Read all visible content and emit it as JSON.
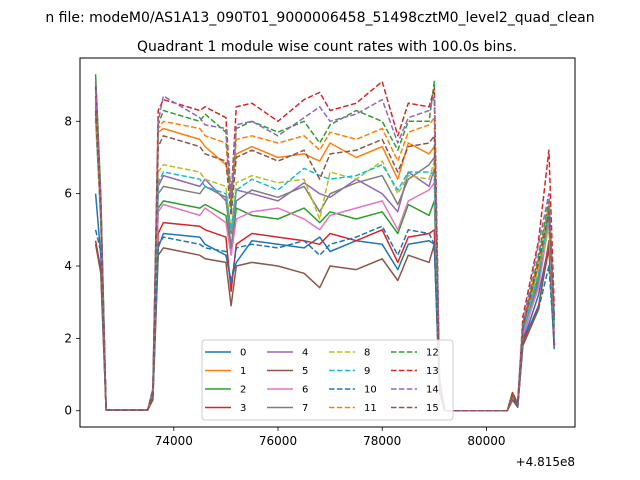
{
  "figure": {
    "suptitle": "n file: modeM0/AS1A13_090T01_9000006458_51498cztM0_level2_quad_clean",
    "title": "Quadrant 1 module wise count rates with 100.0s bins.",
    "x_offset_label": "+4.815e8"
  },
  "chart_data": {
    "type": "line",
    "title": "Quadrant 1 module wise count rates with 100.0s bins.",
    "xlabel": "",
    "ylabel": "",
    "x_offset": 481500000,
    "xlim": [
      72200,
      81700
    ],
    "ylim": [
      -0.45,
      9.75
    ],
    "xticks": [
      74000,
      76000,
      78000,
      80000
    ],
    "yticks": [
      0,
      2,
      4,
      6,
      8
    ],
    "xtick_labels": [
      "74000",
      "76000",
      "78000",
      "80000"
    ],
    "ytick_labels": [
      "0",
      "2",
      "4",
      "6",
      "8"
    ],
    "grid": false,
    "legend_position": "lower center",
    "legend_columns": 4,
    "x": [
      72500,
      72600,
      72700,
      73500,
      73600,
      73700,
      73800,
      74500,
      74600,
      75000,
      75100,
      75200,
      75500,
      76000,
      76500,
      76800,
      77000,
      77500,
      78000,
      78300,
      78500,
      78900,
      79000,
      79100,
      79200,
      80400,
      80500,
      80600,
      80700,
      81000,
      81200,
      81300
    ],
    "series": [
      {
        "name": "0",
        "color": "#1f77b4",
        "dash": "solid",
        "values": [
          6.0,
          4.3,
          0.02,
          0.02,
          0.4,
          4.5,
          4.9,
          4.8,
          4.6,
          4.3,
          3.6,
          4.1,
          4.7,
          4.6,
          4.5,
          4.8,
          4.4,
          4.7,
          4.6,
          3.9,
          4.6,
          4.7,
          4.6,
          0.6,
          0.0,
          0.0,
          0.5,
          0.1,
          1.9,
          3.2,
          4.6,
          1.7
        ]
      },
      {
        "name": "1",
        "color": "#ff7f0e",
        "dash": "solid",
        "values": [
          8.5,
          5.5,
          0.02,
          0.02,
          0.5,
          7.7,
          7.8,
          7.5,
          7.3,
          6.8,
          6.1,
          7.1,
          7.3,
          7.0,
          7.1,
          6.9,
          7.4,
          7.0,
          7.3,
          6.4,
          7.4,
          7.1,
          7.3,
          0.8,
          0.0,
          0.0,
          0.3,
          0.2,
          2.3,
          4.0,
          5.3,
          2.6
        ]
      },
      {
        "name": "2",
        "color": "#2ca02c",
        "dash": "solid",
        "values": [
          9.3,
          6.0,
          0.02,
          0.02,
          0.6,
          5.6,
          5.8,
          5.6,
          5.7,
          5.4,
          4.4,
          5.6,
          5.4,
          5.3,
          5.6,
          5.2,
          5.5,
          5.3,
          5.5,
          4.9,
          5.7,
          5.4,
          5.8,
          0.9,
          0.0,
          0.0,
          0.5,
          0.2,
          2.4,
          3.7,
          5.6,
          2.3
        ]
      },
      {
        "name": "3",
        "color": "#d62728",
        "dash": "solid",
        "values": [
          4.7,
          3.9,
          0.02,
          0.02,
          0.4,
          4.9,
          5.2,
          5.1,
          5.0,
          4.8,
          3.3,
          4.6,
          4.9,
          4.8,
          4.7,
          4.6,
          4.9,
          4.7,
          5.0,
          4.1,
          4.8,
          4.9,
          5.0,
          0.6,
          0.0,
          0.0,
          0.3,
          0.1,
          1.9,
          2.9,
          4.5,
          1.8
        ]
      },
      {
        "name": "4",
        "color": "#9467bd",
        "dash": "solid",
        "values": [
          8.7,
          5.6,
          0.02,
          0.02,
          0.5,
          6.2,
          6.5,
          6.2,
          6.4,
          5.8,
          4.9,
          6.1,
          6.0,
          5.8,
          6.3,
          6.0,
          5.9,
          6.4,
          6.0,
          5.5,
          6.6,
          6.2,
          6.7,
          0.8,
          0.0,
          0.0,
          0.4,
          0.2,
          2.0,
          3.5,
          5.3,
          2.1
        ]
      },
      {
        "name": "5",
        "color": "#8c564b",
        "dash": "solid",
        "values": [
          4.6,
          3.8,
          0.02,
          0.02,
          0.3,
          4.3,
          4.5,
          4.3,
          4.2,
          4.1,
          2.9,
          4.0,
          4.1,
          4.0,
          3.8,
          3.4,
          4.0,
          3.9,
          4.2,
          3.6,
          4.3,
          4.1,
          4.6,
          0.5,
          0.0,
          0.0,
          0.3,
          0.1,
          1.8,
          2.8,
          4.7,
          1.9
        ]
      },
      {
        "name": "6",
        "color": "#e377c2",
        "dash": "solid",
        "values": [
          8.2,
          5.2,
          0.02,
          0.02,
          0.5,
          5.5,
          5.7,
          5.4,
          5.6,
          5.2,
          4.3,
          5.3,
          5.5,
          5.6,
          5.3,
          5.0,
          5.4,
          5.6,
          5.8,
          5.0,
          5.8,
          6.1,
          6.3,
          0.7,
          0.0,
          0.0,
          0.4,
          0.2,
          2.1,
          3.4,
          5.2,
          2.2
        ]
      },
      {
        "name": "7",
        "color": "#7f7f7f",
        "dash": "solid",
        "values": [
          8.4,
          5.5,
          0.02,
          0.02,
          0.5,
          6.0,
          6.2,
          6.0,
          6.2,
          5.9,
          4.5,
          5.8,
          6.1,
          5.9,
          6.2,
          5.5,
          6.0,
          6.3,
          6.5,
          5.7,
          6.4,
          6.8,
          7.0,
          0.8,
          0.0,
          0.0,
          0.4,
          0.2,
          2.2,
          3.6,
          5.5,
          2.3
        ]
      },
      {
        "name": "8",
        "color": "#bcbd22",
        "dash": "dashed",
        "values": [
          8.0,
          5.3,
          0.02,
          0.02,
          0.5,
          6.6,
          6.8,
          6.6,
          6.4,
          6.2,
          5.0,
          6.3,
          6.5,
          6.3,
          6.4,
          5.3,
          6.6,
          6.4,
          6.9,
          6.0,
          6.5,
          6.4,
          6.9,
          0.7,
          0.0,
          0.0,
          0.4,
          0.2,
          2.3,
          3.9,
          5.0,
          2.4
        ]
      },
      {
        "name": "9",
        "color": "#17becf",
        "dash": "dashed",
        "values": [
          8.1,
          5.4,
          0.02,
          0.02,
          0.5,
          6.3,
          6.6,
          6.4,
          6.2,
          6.0,
          5.0,
          6.1,
          6.4,
          6.1,
          6.7,
          6.5,
          6.4,
          6.5,
          6.8,
          6.1,
          6.6,
          6.6,
          6.5,
          0.7,
          0.0,
          0.0,
          0.4,
          0.2,
          2.2,
          3.8,
          5.4,
          2.4
        ]
      },
      {
        "name": "10",
        "color": "#1f77b4",
        "dash": "dashed",
        "values": [
          5.0,
          4.4,
          0.02,
          0.02,
          0.4,
          4.6,
          4.8,
          4.6,
          4.5,
          4.4,
          3.5,
          4.5,
          4.6,
          4.5,
          4.7,
          4.3,
          4.6,
          4.8,
          5.1,
          4.3,
          5.0,
          4.9,
          4.6,
          0.6,
          0.0,
          0.0,
          0.4,
          0.1,
          2.0,
          2.8,
          4.0,
          1.9
        ]
      },
      {
        "name": "11",
        "color": "#ff7f0e",
        "dash": "dashed",
        "values": [
          8.6,
          5.5,
          0.02,
          0.02,
          0.6,
          7.8,
          8.0,
          7.8,
          7.6,
          7.4,
          5.8,
          7.5,
          7.6,
          7.4,
          7.6,
          7.2,
          7.7,
          7.5,
          7.8,
          6.9,
          7.7,
          7.9,
          8.1,
          0.8,
          0.0,
          0.0,
          0.4,
          0.2,
          2.4,
          4.2,
          5.7,
          2.6
        ]
      },
      {
        "name": "12",
        "color": "#2ca02c",
        "dash": "dashed",
        "values": [
          8.9,
          5.7,
          0.02,
          0.02,
          0.6,
          7.9,
          8.3,
          8.0,
          8.2,
          7.7,
          5.6,
          7.8,
          8.0,
          7.7,
          8.0,
          7.4,
          7.9,
          8.3,
          8.0,
          7.2,
          8.0,
          8.0,
          9.1,
          0.8,
          0.0,
          0.0,
          0.4,
          0.2,
          2.3,
          4.3,
          5.8,
          2.5
        ]
      },
      {
        "name": "13",
        "color": "#d62728",
        "dash": "dashed",
        "values": [
          9.0,
          5.8,
          0.02,
          0.02,
          0.6,
          8.3,
          8.6,
          8.3,
          8.4,
          8.1,
          5.9,
          8.4,
          8.5,
          8.0,
          8.6,
          8.8,
          8.3,
          8.5,
          9.1,
          7.6,
          8.5,
          8.4,
          8.9,
          0.9,
          0.0,
          0.0,
          0.5,
          0.2,
          2.6,
          4.7,
          7.2,
          2.9
        ]
      },
      {
        "name": "14",
        "color": "#9467bd",
        "dash": "dashed",
        "values": [
          9.1,
          5.8,
          0.02,
          0.02,
          0.6,
          8.0,
          8.7,
          8.1,
          7.9,
          7.8,
          5.9,
          7.9,
          8.0,
          7.6,
          8.1,
          8.4,
          8.0,
          8.2,
          8.6,
          7.4,
          8.1,
          8.3,
          8.7,
          0.8,
          0.0,
          0.0,
          0.4,
          0.2,
          2.4,
          4.6,
          6.0,
          2.7
        ]
      },
      {
        "name": "15",
        "color": "#8c564b",
        "dash": "dashed",
        "values": [
          8.3,
          5.4,
          0.02,
          0.02,
          0.5,
          7.3,
          7.6,
          7.3,
          7.1,
          6.9,
          5.4,
          7.0,
          7.2,
          6.9,
          7.2,
          6.4,
          7.1,
          7.2,
          7.5,
          6.6,
          7.3,
          7.4,
          7.6,
          0.7,
          0.0,
          0.0,
          0.4,
          0.2,
          2.3,
          4.1,
          5.5,
          2.5
        ]
      }
    ]
  }
}
